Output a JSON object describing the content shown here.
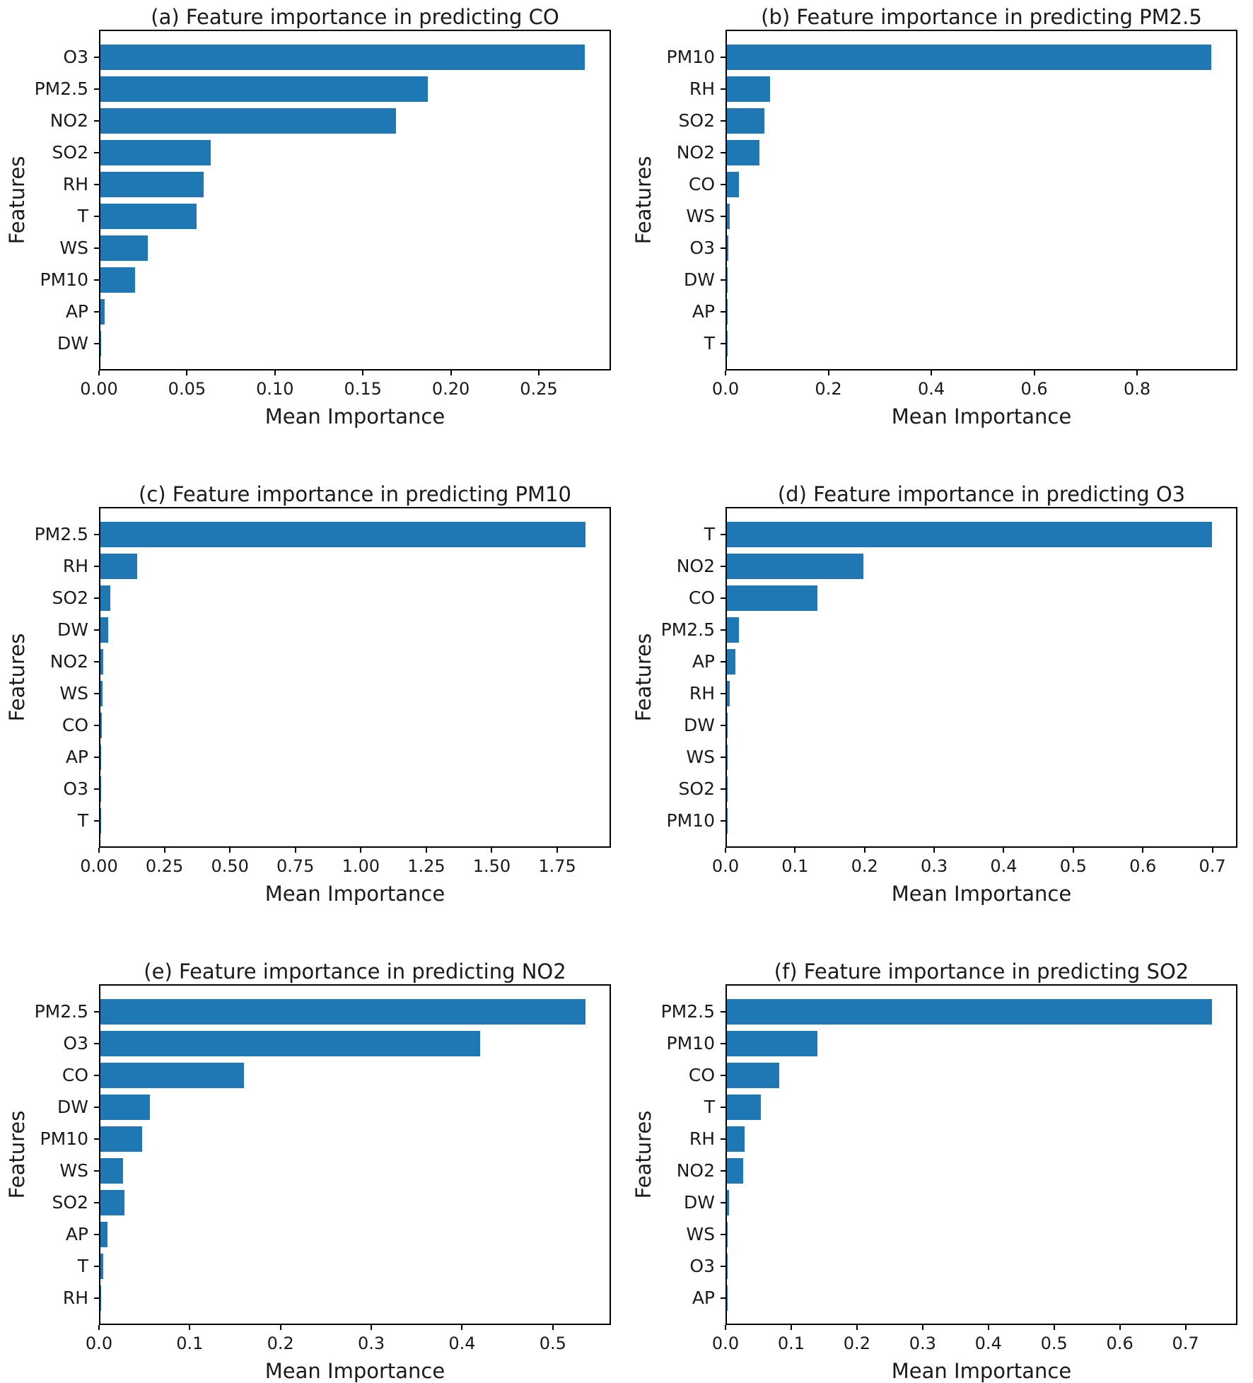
{
  "figure": {
    "background": "#ffffff",
    "description": "Feature importance bar charts for predicting six air pollutants"
  },
  "colors": {
    "bar": "#1f77b4",
    "axis": "#000000",
    "text": "#1a1a1a"
  },
  "chart_data": [
    {
      "id": "a",
      "type": "bar",
      "orientation": "horizontal",
      "title": "(a) Feature importance in predicting CO",
      "xlabel": "Mean Importance",
      "ylabel": "Features",
      "categories": [
        "O3",
        "PM2.5",
        "NO2",
        "SO2",
        "RH",
        "T",
        "WS",
        "PM10",
        "AP",
        "DW"
      ],
      "values": [
        0.277,
        0.187,
        0.169,
        0.063,
        0.059,
        0.055,
        0.027,
        0.02,
        0.0024,
        0.0006
      ],
      "xlim": [
        0,
        0.291
      ],
      "xticks": [
        0.0,
        0.05,
        0.1,
        0.15,
        0.2,
        0.25
      ],
      "xtick_labels": [
        "0.00",
        "0.05",
        "0.10",
        "0.15",
        "0.20",
        "0.25"
      ],
      "grid": false,
      "legend": null
    },
    {
      "id": "b",
      "type": "bar",
      "orientation": "horizontal",
      "title": "(b) Feature importance in predicting PM2.5",
      "xlabel": "Mean Importance",
      "ylabel": "Features",
      "categories": [
        "PM10",
        "RH",
        "SO2",
        "NO2",
        "CO",
        "WS",
        "O3",
        "DW",
        "AP",
        "T"
      ],
      "values": [
        0.947,
        0.084,
        0.073,
        0.064,
        0.023,
        0.005,
        0.003,
        0.0012,
        0.0006,
        0.0004
      ],
      "xlim": [
        0,
        0.995
      ],
      "xticks": [
        0.0,
        0.2,
        0.4,
        0.6,
        0.8
      ],
      "xtick_labels": [
        "0.0",
        "0.2",
        "0.4",
        "0.6",
        "0.8"
      ],
      "grid": false,
      "legend": null
    },
    {
      "id": "c",
      "type": "bar",
      "orientation": "horizontal",
      "title": "(c) Feature importance in predicting PM10",
      "xlabel": "Mean Importance",
      "ylabel": "Features",
      "categories": [
        "PM2.5",
        "RH",
        "SO2",
        "DW",
        "NO2",
        "WS",
        "CO",
        "AP",
        "O3",
        "T"
      ],
      "values": [
        1.862,
        0.142,
        0.038,
        0.031,
        0.0115,
        0.009,
        0.006,
        0.002,
        0.001,
        0.0005
      ],
      "xlim": [
        0,
        1.955
      ],
      "xticks": [
        0.0,
        0.25,
        0.5,
        0.75,
        1.0,
        1.25,
        1.5,
        1.75
      ],
      "xtick_labels": [
        "0.00",
        "0.25",
        "0.50",
        "0.75",
        "1.00",
        "1.25",
        "1.50",
        "1.75"
      ],
      "grid": false,
      "legend": null
    },
    {
      "id": "d",
      "type": "bar",
      "orientation": "horizontal",
      "title": "(d) Feature importance in predicting O3",
      "xlabel": "Mean Importance",
      "ylabel": "Features",
      "categories": [
        "T",
        "NO2",
        "CO",
        "PM2.5",
        "AP",
        "RH",
        "DW",
        "WS",
        "SO2",
        "PM10"
      ],
      "values": [
        0.701,
        0.197,
        0.131,
        0.017,
        0.012,
        0.004,
        0.0012,
        0.0007,
        0.0004,
        0.0003
      ],
      "xlim": [
        0,
        0.736
      ],
      "xticks": [
        0.0,
        0.1,
        0.2,
        0.3,
        0.4,
        0.5,
        0.6,
        0.7
      ],
      "xtick_labels": [
        "0.0",
        "0.1",
        "0.2",
        "0.3",
        "0.4",
        "0.5",
        "0.6",
        "0.7"
      ],
      "grid": false,
      "legend": null
    },
    {
      "id": "e",
      "type": "bar",
      "orientation": "horizontal",
      "title": "(e) Feature importance in predicting NO2",
      "xlabel": "Mean Importance",
      "ylabel": "Features",
      "categories": [
        "PM2.5",
        "O3",
        "CO",
        "DW",
        "PM10",
        "WS",
        "SO2",
        "AP",
        "T",
        "RH"
      ],
      "values": [
        0.537,
        0.421,
        0.159,
        0.055,
        0.046,
        0.025,
        0.027,
        0.008,
        0.003,
        0.0008
      ],
      "xlim": [
        0,
        0.564
      ],
      "xticks": [
        0.0,
        0.1,
        0.2,
        0.3,
        0.4,
        0.5
      ],
      "xtick_labels": [
        "0.0",
        "0.1",
        "0.2",
        "0.3",
        "0.4",
        "0.5"
      ],
      "grid": false,
      "legend": null
    },
    {
      "id": "f",
      "type": "bar",
      "orientation": "horizontal",
      "title": "(f) Feature importance in predicting SO2",
      "xlabel": "Mean Importance",
      "ylabel": "Features",
      "categories": [
        "PM2.5",
        "PM10",
        "CO",
        "T",
        "RH",
        "NO2",
        "DW",
        "WS",
        "O3",
        "AP"
      ],
      "values": [
        0.742,
        0.138,
        0.08,
        0.052,
        0.027,
        0.025,
        0.0035,
        0.0012,
        0.0005,
        0.0003
      ],
      "xlim": [
        0,
        0.779
      ],
      "xticks": [
        0.0,
        0.1,
        0.2,
        0.3,
        0.4,
        0.5,
        0.6,
        0.7
      ],
      "xtick_labels": [
        "0.0",
        "0.1",
        "0.2",
        "0.3",
        "0.4",
        "0.5",
        "0.6",
        "0.7"
      ],
      "grid": false,
      "legend": null
    }
  ]
}
